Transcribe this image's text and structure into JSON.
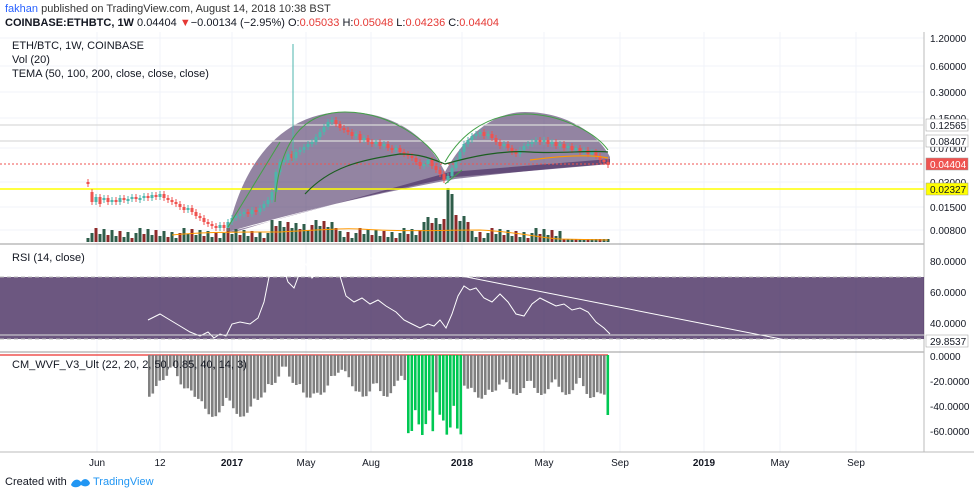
{
  "header": {
    "author": "fakhan",
    "published_text": " published on TradingView.com, August 14, 2018 10:38 BST",
    "symbol": "COINBASE:ETHBTC, 1W",
    "price": "0.04404",
    "change_arrow": "▼",
    "change": "−0.00134 (−2.95%)",
    "o_label": "O:",
    "o_value": "0.05033",
    "h_label": "H:",
    "h_value": "0.05048",
    "l_label": "L:",
    "l_value": "0.04236",
    "c_label": "C:",
    "c_value": "0.04404"
  },
  "legend": {
    "title": "ETH/BTC, 1W, COINBASE",
    "vol": "Vol (20)",
    "tema": "TEMA (50, 100, 200, close, close, close)",
    "rsi": "RSI (14, close)",
    "wvf": "CM_WVF_V3_Ult (22, 20, 2, 50, 0.85, 40, 14, 3)"
  },
  "price_axis": {
    "ticks": [
      "1.20000",
      "0.60000",
      "0.30000",
      "0.15000",
      "0.07000",
      "0.03000",
      "0.01500",
      "0.00800"
    ],
    "badges": [
      {
        "label": "0.12565",
        "color": "#ffffff",
        "text": "#131722"
      },
      {
        "label": "0.08407",
        "color": "#ffffff",
        "text": "#131722"
      },
      {
        "label": "0.04404",
        "color": "#ef5350",
        "text": "#ffffff"
      },
      {
        "label": "0.02327",
        "color": "#ffff00",
        "text": "#131722"
      }
    ]
  },
  "rsi_axis": {
    "ticks": [
      "80.0000",
      "60.0000",
      "40.0000"
    ],
    "badge": "29.8537"
  },
  "wvf_axis": {
    "ticks": [
      "0.0000",
      "-20.0000",
      "-40.0000",
      "-60.0000"
    ]
  },
  "time_axis": {
    "ticks": [
      "Jun",
      "12",
      "2017",
      "May",
      "Aug",
      "2018",
      "May",
      "Sep",
      "2019",
      "May",
      "Sep"
    ]
  },
  "colors": {
    "up": "#4db6ac",
    "down": "#ef5350",
    "ema": "#ff9800",
    "arc": "#2e7d32",
    "highlight": "#ffff00",
    "rsi_band": "#4a2a5f",
    "wvf_gray": "#808080",
    "wvf_green": "#00c853"
  },
  "footer": {
    "created_with": "Created with",
    "brand": "TradingView"
  }
}
